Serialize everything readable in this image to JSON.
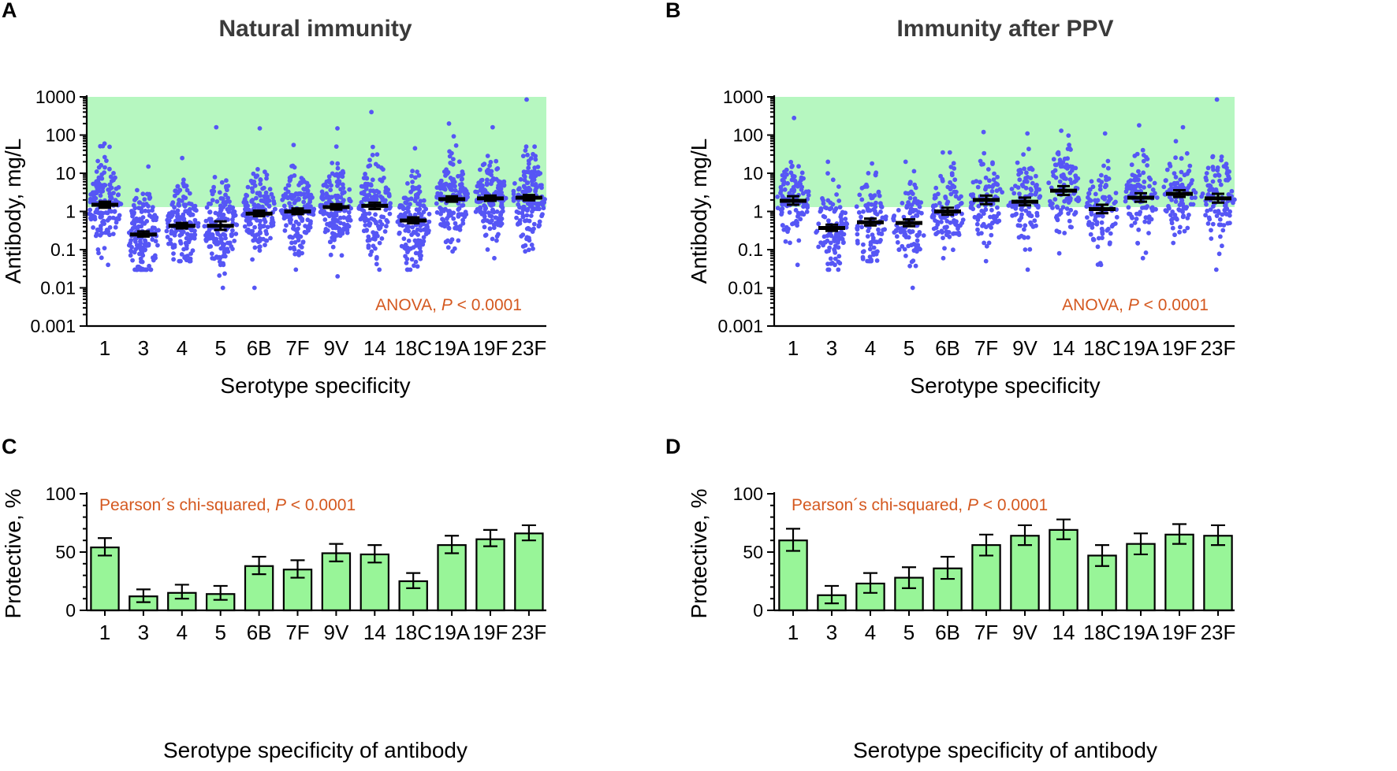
{
  "chart_data": [
    {
      "panel": "A",
      "type": "scatter",
      "title": "Natural immunity",
      "xlabel": "Serotype specificity",
      "ylabel": "Antibody, mg/L",
      "yscale": "log",
      "ylim": [
        0.001,
        1000
      ],
      "yticks": [
        "1000",
        "100",
        "10",
        "1",
        "0.1",
        "0.01",
        "0.001"
      ],
      "protective_band": [
        1.3,
        1000
      ],
      "protective_band_color": "#b6f7c0",
      "point_color": "#5656f5",
      "annotation": {
        "text": "ANOVA, ",
        "p": "P",
        "rest": " < 0.0001"
      },
      "categories": [
        "1",
        "3",
        "4",
        "5",
        "6B",
        "7F",
        "9V",
        "14",
        "18C",
        "19A",
        "19F",
        "23F"
      ],
      "geo_mean": [
        1.5,
        0.25,
        0.42,
        0.42,
        0.88,
        1.0,
        1.3,
        1.4,
        0.58,
        2.1,
        2.2,
        2.3
      ],
      "sem_low": [
        1.25,
        0.22,
        0.36,
        0.33,
        0.75,
        0.85,
        1.12,
        1.15,
        0.49,
        1.8,
        1.9,
        1.95
      ],
      "sem_high": [
        1.8,
        0.3,
        0.5,
        0.55,
        1.05,
        1.2,
        1.55,
        1.7,
        0.7,
        2.5,
        2.6,
        2.7
      ],
      "n_points": 150,
      "data_range": [
        [
          0.04,
          60
        ],
        [
          0.03,
          15
        ],
        [
          0.05,
          25
        ],
        [
          0.01,
          160
        ],
        [
          0.01,
          150
        ],
        [
          0.03,
          55
        ],
        [
          0.02,
          150
        ],
        [
          0.03,
          400
        ],
        [
          0.03,
          45
        ],
        [
          0.09,
          200
        ],
        [
          0.06,
          160
        ],
        [
          0.09,
          850
        ]
      ]
    },
    {
      "panel": "B",
      "type": "scatter",
      "title": "Immunity after PPV",
      "xlabel": "Serotype specificity",
      "ylabel": "Antibody, mg/L",
      "yscale": "log",
      "ylim": [
        0.001,
        1000
      ],
      "yticks": [
        "1000",
        "100",
        "10",
        "1",
        "0.1",
        "0.01",
        "0.001"
      ],
      "protective_band": [
        1.3,
        1000
      ],
      "protective_band_color": "#b6f7c0",
      "point_color": "#5656f5",
      "annotation": {
        "text": "ANOVA, ",
        "p": "P",
        "rest": " < 0.0001"
      },
      "categories": [
        "1",
        "3",
        "4",
        "5",
        "6B",
        "7F",
        "9V",
        "14",
        "18C",
        "19A",
        "19F",
        "23F"
      ],
      "geo_mean": [
        1.9,
        0.37,
        0.52,
        0.5,
        1.0,
        2.0,
        1.8,
        3.5,
        1.15,
        2.3,
        2.9,
        2.2
      ],
      "sem_low": [
        1.5,
        0.31,
        0.43,
        0.41,
        0.82,
        1.55,
        1.45,
        2.7,
        0.9,
        1.8,
        2.4,
        1.7
      ],
      "sem_high": [
        2.5,
        0.45,
        0.65,
        0.62,
        1.25,
        2.6,
        2.3,
        4.6,
        1.5,
        3.0,
        3.6,
        2.9
      ],
      "n_points": 100,
      "data_range": [
        [
          0.04,
          280
        ],
        [
          0.03,
          20
        ],
        [
          0.05,
          18
        ],
        [
          0.01,
          20
        ],
        [
          0.06,
          35
        ],
        [
          0.05,
          120
        ],
        [
          0.03,
          110
        ],
        [
          0.08,
          130
        ],
        [
          0.04,
          110
        ],
        [
          0.06,
          180
        ],
        [
          0.15,
          160
        ],
        [
          0.03,
          850
        ]
      ]
    },
    {
      "panel": "C",
      "type": "bar",
      "title": "",
      "xlabel": "Serotype specificity of antibody",
      "ylabel": "Protective, %",
      "ylim": [
        0,
        100
      ],
      "yticks": [
        "100",
        "50",
        "0"
      ],
      "bar_color": "#98f598",
      "annotation": {
        "text": "Pearson´s chi-squared, ",
        "p": "P",
        "rest": " < 0.0001"
      },
      "categories": [
        "1",
        "3",
        "4",
        "5",
        "6B",
        "7F",
        "9V",
        "14",
        "18C",
        "19A",
        "19F",
        "23F"
      ],
      "values": [
        54,
        12,
        15,
        14,
        38,
        35,
        49,
        48,
        25,
        56,
        61,
        66
      ],
      "error_low": [
        47,
        7,
        10,
        9,
        31,
        28,
        42,
        41,
        19,
        49,
        55,
        60
      ],
      "error_high": [
        62,
        18,
        22,
        21,
        46,
        43,
        57,
        56,
        32,
        64,
        69,
        73
      ]
    },
    {
      "panel": "D",
      "type": "bar",
      "title": "",
      "xlabel": "Serotype specificity of antibody",
      "ylabel": "Protective, %",
      "ylim": [
        0,
        100
      ],
      "yticks": [
        "100",
        "50",
        "0"
      ],
      "bar_color": "#98f598",
      "annotation": {
        "text": "Pearson´s chi-squared, ",
        "p": "P",
        "rest": " < 0.0001"
      },
      "categories": [
        "1",
        "3",
        "4",
        "5",
        "6B",
        "7F",
        "9V",
        "14",
        "18C",
        "19A",
        "19F",
        "23F"
      ],
      "values": [
        60,
        13,
        23,
        28,
        36,
        56,
        64,
        69,
        47,
        57,
        65,
        64
      ],
      "error_low": [
        51,
        6,
        15,
        19,
        27,
        47,
        56,
        61,
        38,
        48,
        57,
        56
      ],
      "error_high": [
        70,
        21,
        32,
        37,
        46,
        65,
        73,
        78,
        56,
        66,
        74,
        73
      ]
    }
  ]
}
